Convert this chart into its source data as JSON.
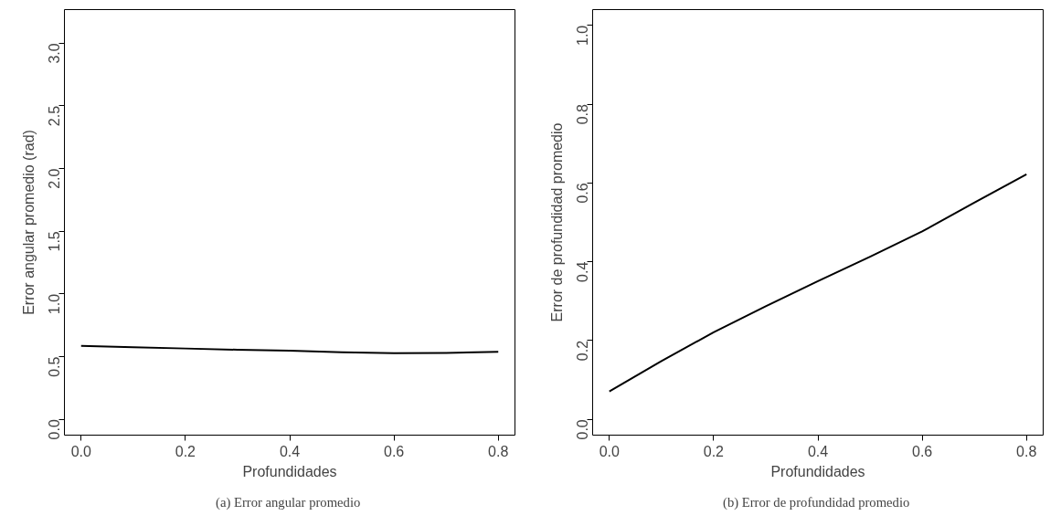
{
  "chart_data": [
    {
      "type": "line",
      "xlabel": "Profundidades",
      "ylabel": "Error angular promedio (rad)",
      "annotations": [
        "(a)  Error angular promedio"
      ],
      "x": [
        0.0,
        0.1,
        0.2,
        0.3,
        0.4,
        0.5,
        0.6,
        0.7,
        0.8
      ],
      "series": [
        {
          "color": "#000000",
          "values": [
            0.586,
            0.575,
            0.565,
            0.555,
            0.547,
            0.535,
            0.527,
            0.53,
            0.539
          ]
        }
      ],
      "xlim": [
        -0.032,
        0.832
      ],
      "xticks": [
        {
          "value": 0,
          "label": "0.0"
        },
        0.2,
        0.4,
        0.6,
        0.8
      ],
      "ylim": [
        -0.126,
        3.268
      ],
      "yticks": [
        {
          "value": 0,
          "label": "0.0"
        },
        0.5,
        {
          "value": 1,
          "label": "1.0"
        },
        1.5,
        {
          "value": 2,
          "label": "2.0"
        },
        2.5,
        {
          "value": 3,
          "label": "3.0"
        }
      ],
      "grid": false,
      "marker": "none",
      "line_style": "solid"
    },
    {
      "type": "line",
      "xlabel": "Profundidades",
      "ylabel": "Error de profundidad promedio",
      "annotations": [
        "(b)  Error de profundidad promedio"
      ],
      "x": [
        0.0,
        0.1,
        0.2,
        0.3,
        0.4,
        0.5,
        0.6,
        0.7,
        0.8
      ],
      "series": [
        {
          "color": "#000000",
          "values": [
            0.071,
            0.148,
            0.221,
            0.287,
            0.351,
            0.413,
            0.477,
            0.55,
            0.622
          ]
        }
      ],
      "xlim": [
        -0.032,
        0.832
      ],
      "xticks": [
        {
          "value": 0,
          "label": "0.0"
        },
        0.2,
        0.4,
        0.6,
        0.8
      ],
      "ylim": [
        -0.04,
        1.04
      ],
      "yticks": [
        {
          "value": 0,
          "label": "0.0"
        },
        0.2,
        0.4,
        0.6,
        0.8,
        {
          "value": 1,
          "label": "1.0"
        }
      ],
      "grid": false,
      "marker": "none",
      "line_style": "solid"
    }
  ]
}
